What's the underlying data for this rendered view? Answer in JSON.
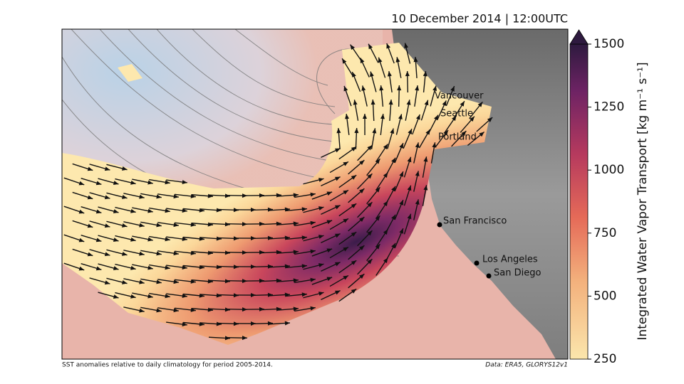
{
  "chart_data": {
    "type": "map",
    "title": "10 December 2014 | 12:00UTC",
    "cities": [
      "Vancouver",
      "Seattle",
      "Portland",
      "San Francisco",
      "Los Angeles",
      "San Diego"
    ],
    "colorbar": {
      "label": "Integrated Water Vapor Transport [kg m⁻¹ s⁻¹]",
      "ylim": [
        250,
        1500
      ],
      "yticks": [
        250,
        500,
        750,
        1000,
        1250,
        1500
      ]
    },
    "footnote_left": "SST anomalies relative to daily climatology for period 2005-2014.",
    "footnote_right": "Data: ERA5, GLORYS12v1"
  }
}
